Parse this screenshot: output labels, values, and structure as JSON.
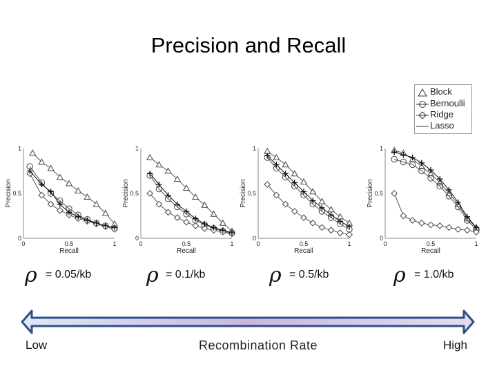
{
  "title": "Precision and Recall",
  "legend": {
    "items": [
      {
        "label": "Block",
        "marker": "triangle"
      },
      {
        "label": "Bernoulli",
        "marker": "circle-line"
      },
      {
        "label": "Ridge",
        "marker": "diamond-line"
      },
      {
        "label": "Lasso",
        "marker": "line"
      }
    ]
  },
  "rho_symbol": "ρ",
  "rates": [
    "= 0.05/kb",
    "= 0.1/kb",
    "= 0.5/kb",
    "= 1.0/kb"
  ],
  "scale": {
    "low": "Low",
    "high": "High",
    "label": "Recombination Rate"
  },
  "chart_data": [
    {
      "type": "line",
      "xlabel": "Recall",
      "ylabel": "Precision",
      "xlim": [
        0,
        1
      ],
      "ylim": [
        0,
        1
      ],
      "xticks": [
        "0",
        "0.5",
        "1"
      ],
      "yticks": [
        "0",
        "0.5",
        "1"
      ],
      "series": [
        {
          "name": "Block",
          "marker": "triangle",
          "x": [
            0.1,
            0.2,
            0.3,
            0.4,
            0.5,
            0.6,
            0.7,
            0.8,
            0.9,
            1.0
          ],
          "y": [
            0.95,
            0.85,
            0.78,
            0.68,
            0.61,
            0.53,
            0.46,
            0.38,
            0.28,
            0.16
          ]
        },
        {
          "name": "Bernoulli",
          "marker": "circle",
          "x": [
            0.07,
            0.2,
            0.3,
            0.4,
            0.5,
            0.6,
            0.7,
            0.8,
            0.9,
            1.0
          ],
          "y": [
            0.8,
            0.62,
            0.5,
            0.42,
            0.33,
            0.26,
            0.21,
            0.17,
            0.14,
            0.11
          ]
        },
        {
          "name": "Ridge",
          "marker": "diamond",
          "x": [
            0.07,
            0.2,
            0.3,
            0.4,
            0.5,
            0.6,
            0.7,
            0.8,
            0.9,
            1.0
          ],
          "y": [
            0.72,
            0.48,
            0.38,
            0.31,
            0.26,
            0.22,
            0.19,
            0.16,
            0.13,
            0.1
          ]
        },
        {
          "name": "Lasso",
          "marker": "plus",
          "x": [
            0.07,
            0.2,
            0.3,
            0.4,
            0.5,
            0.6,
            0.7,
            0.8,
            0.9,
            1.0
          ],
          "y": [
            0.75,
            0.6,
            0.52,
            0.38,
            0.29,
            0.24,
            0.2,
            0.17,
            0.14,
            0.12
          ]
        }
      ]
    },
    {
      "type": "line",
      "xlabel": "Recall",
      "ylabel": "Precision",
      "xlim": [
        0,
        1
      ],
      "ylim": [
        0,
        1
      ],
      "xticks": [
        "0",
        "0.5",
        "1"
      ],
      "yticks": [
        "0",
        "0.5",
        "1"
      ],
      "series": [
        {
          "name": "Block",
          "marker": "triangle",
          "x": [
            0.1,
            0.2,
            0.3,
            0.4,
            0.5,
            0.6,
            0.7,
            0.8,
            0.9,
            1.0
          ],
          "y": [
            0.9,
            0.82,
            0.75,
            0.66,
            0.56,
            0.46,
            0.37,
            0.27,
            0.17,
            0.08
          ]
        },
        {
          "name": "Bernoulli",
          "marker": "circle",
          "x": [
            0.1,
            0.2,
            0.3,
            0.4,
            0.5,
            0.6,
            0.7,
            0.8,
            0.9,
            1.0
          ],
          "y": [
            0.7,
            0.55,
            0.44,
            0.35,
            0.27,
            0.2,
            0.15,
            0.11,
            0.08,
            0.06
          ]
        },
        {
          "name": "Ridge",
          "marker": "diamond",
          "x": [
            0.1,
            0.2,
            0.3,
            0.4,
            0.5,
            0.6,
            0.7,
            0.8,
            0.9,
            1.0
          ],
          "y": [
            0.5,
            0.38,
            0.29,
            0.23,
            0.18,
            0.14,
            0.11,
            0.09,
            0.07,
            0.05
          ]
        },
        {
          "name": "Lasso",
          "marker": "plus",
          "x": [
            0.1,
            0.2,
            0.3,
            0.4,
            0.5,
            0.6,
            0.7,
            0.8,
            0.9,
            1.0
          ],
          "y": [
            0.72,
            0.6,
            0.48,
            0.38,
            0.3,
            0.22,
            0.16,
            0.12,
            0.09,
            0.06
          ]
        }
      ]
    },
    {
      "type": "line",
      "xlabel": "Recall",
      "ylabel": "Precision",
      "xlim": [
        0,
        1
      ],
      "ylim": [
        0,
        1
      ],
      "xticks": [
        "0",
        "0.5",
        "1"
      ],
      "yticks": [
        "0",
        "0.5",
        "1"
      ],
      "series": [
        {
          "name": "Block",
          "marker": "triangle",
          "x": [
            0.1,
            0.2,
            0.3,
            0.4,
            0.5,
            0.6,
            0.7,
            0.8,
            0.9,
            1.0
          ],
          "y": [
            0.97,
            0.9,
            0.82,
            0.72,
            0.63,
            0.52,
            0.41,
            0.32,
            0.24,
            0.17
          ]
        },
        {
          "name": "Bernoulli",
          "marker": "circle",
          "x": [
            0.1,
            0.2,
            0.3,
            0.4,
            0.5,
            0.6,
            0.7,
            0.8,
            0.9,
            1.0
          ],
          "y": [
            0.9,
            0.78,
            0.68,
            0.58,
            0.48,
            0.38,
            0.3,
            0.23,
            0.16,
            0.1
          ]
        },
        {
          "name": "Ridge",
          "marker": "diamond",
          "x": [
            0.1,
            0.2,
            0.3,
            0.4,
            0.5,
            0.6,
            0.7,
            0.8,
            0.9,
            1.0
          ],
          "y": [
            0.6,
            0.48,
            0.38,
            0.3,
            0.23,
            0.17,
            0.12,
            0.09,
            0.06,
            0.04
          ]
        },
        {
          "name": "Lasso",
          "marker": "plus",
          "x": [
            0.1,
            0.2,
            0.3,
            0.4,
            0.5,
            0.6,
            0.7,
            0.8,
            0.9,
            1.0
          ],
          "y": [
            0.92,
            0.82,
            0.72,
            0.62,
            0.52,
            0.42,
            0.34,
            0.26,
            0.19,
            0.13
          ]
        }
      ]
    },
    {
      "type": "line",
      "xlabel": "Recall",
      "ylabel": "Precision",
      "xlim": [
        0,
        1
      ],
      "ylim": [
        0,
        1
      ],
      "xticks": [
        "0",
        "0.5",
        "1"
      ],
      "yticks": [
        "0",
        "0.5",
        "1"
      ],
      "series": [
        {
          "name": "Block",
          "marker": "triangle",
          "x": [
            0.1,
            0.2,
            0.3,
            0.4,
            0.5,
            0.6,
            0.7,
            0.8,
            0.9,
            1.0
          ],
          "y": [
            0.98,
            0.95,
            0.88,
            0.8,
            0.72,
            0.62,
            0.5,
            0.38,
            0.22,
            0.12
          ]
        },
        {
          "name": "Bernoulli",
          "marker": "circle",
          "x": [
            0.1,
            0.2,
            0.3,
            0.4,
            0.5,
            0.6,
            0.7,
            0.8,
            0.9,
            1.0
          ],
          "y": [
            0.88,
            0.85,
            0.82,
            0.75,
            0.67,
            0.58,
            0.47,
            0.35,
            0.2,
            0.1
          ]
        },
        {
          "name": "Ridge",
          "marker": "diamond",
          "x": [
            0.1,
            0.2,
            0.3,
            0.4,
            0.5,
            0.6,
            0.7,
            0.8,
            0.9,
            1.0
          ],
          "y": [
            0.5,
            0.25,
            0.2,
            0.17,
            0.15,
            0.14,
            0.12,
            0.1,
            0.09,
            0.07
          ]
        },
        {
          "name": "Lasso",
          "marker": "plus",
          "x": [
            0.1,
            0.2,
            0.3,
            0.4,
            0.5,
            0.6,
            0.7,
            0.8,
            0.9,
            1.0
          ],
          "y": [
            0.96,
            0.93,
            0.9,
            0.84,
            0.76,
            0.66,
            0.54,
            0.4,
            0.24,
            0.12
          ]
        }
      ]
    }
  ]
}
